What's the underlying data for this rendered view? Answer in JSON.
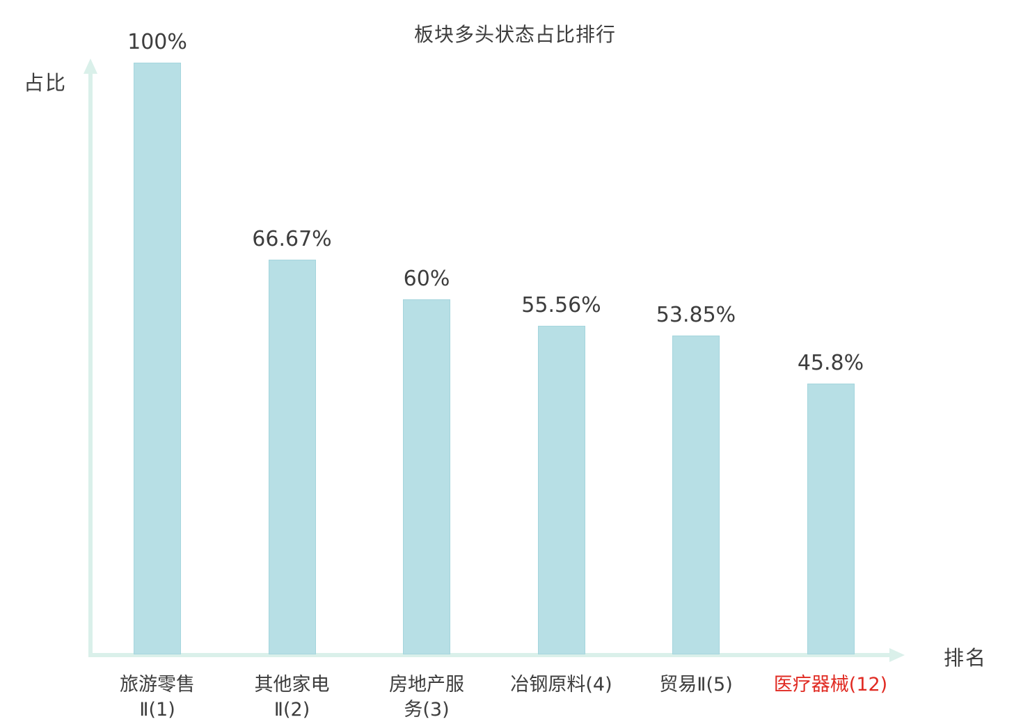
{
  "chart_data": {
    "type": "bar",
    "title": "板块多头状态占比排行",
    "xlabel": "排名",
    "ylabel": "占比",
    "ylim": [
      0,
      100
    ],
    "grid": false,
    "legend": false,
    "categories": [
      "旅游零售Ⅱ(1)",
      "其他家电Ⅱ(2)",
      "房地产服务(3)",
      "冶钢原料(4)",
      "贸易Ⅱ(5)",
      "医疗器械(12)"
    ],
    "category_lines": [
      [
        "旅游零售",
        "Ⅱ(1)"
      ],
      [
        "其他家电",
        "Ⅱ(2)"
      ],
      [
        "房地产服",
        "务(3)"
      ],
      [
        "冶钢原料(4)"
      ],
      [
        "贸易Ⅱ(5)"
      ],
      [
        "医疗器械(12)"
      ]
    ],
    "values": [
      100,
      66.67,
      60,
      55.56,
      53.85,
      45.8
    ],
    "value_labels": [
      "100%",
      "66.67%",
      "60%",
      "55.56%",
      "53.85%",
      "45.8%"
    ],
    "highlight_index": 5,
    "colors": {
      "bar_fill": "#b7dfe5",
      "bar_border": "#a4d5dd",
      "axis": "#daf0ea",
      "text": "#3d3d3d",
      "highlight_text": "#e02a22"
    }
  }
}
